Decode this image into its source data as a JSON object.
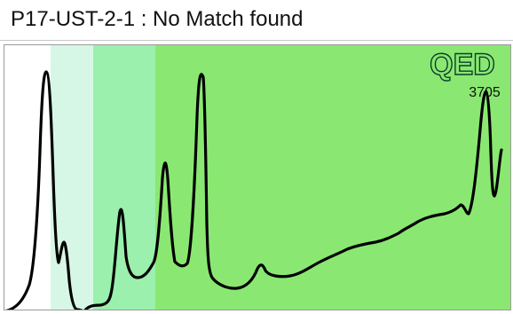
{
  "window": {
    "title": "P17-UST-2-1 : No Match found"
  },
  "chart": {
    "logo_text": "QED",
    "number": "3705"
  },
  "colors": {
    "band_white": "#ffffff",
    "band_1": "#d7f7e6",
    "band_2": "#9bf0ad",
    "band_3": "#8ae872",
    "trace": "#000000",
    "logo_fill": "#8ae872",
    "logo_stroke": "#0a3d2a"
  }
}
